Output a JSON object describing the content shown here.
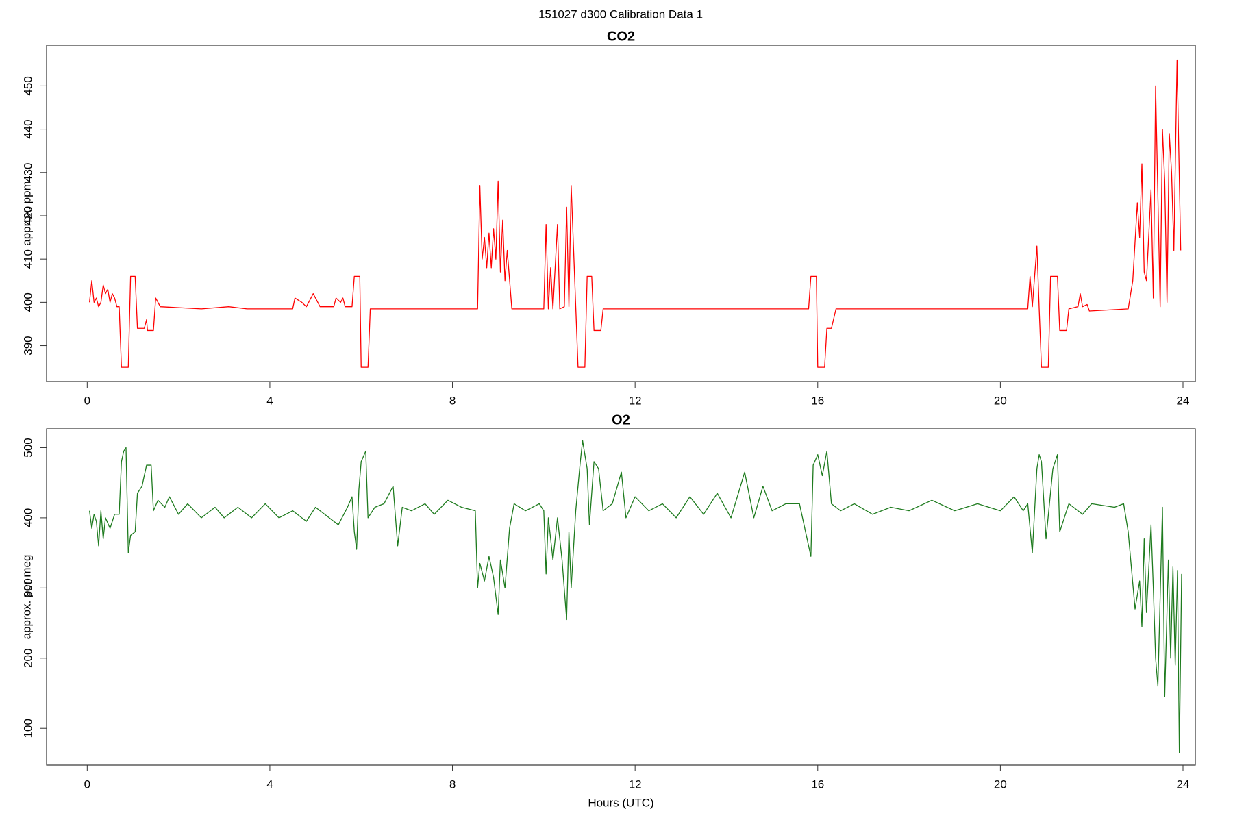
{
  "title": "151027   d300   Calibration Data 1",
  "chart_data": [
    {
      "type": "line",
      "title": "CO2",
      "ylabel": "approx. ppm",
      "xlim": [
        -0.89,
        24.27
      ],
      "xticks": [
        0,
        4,
        8,
        12,
        16,
        20,
        24
      ],
      "ylim": [
        381.7,
        459.4
      ],
      "yticks": [
        390,
        400,
        410,
        420,
        430,
        440,
        450
      ],
      "grid": false,
      "x": [
        0.05,
        0.1,
        0.15,
        0.2,
        0.25,
        0.3,
        0.35,
        0.4,
        0.45,
        0.5,
        0.55,
        0.6,
        0.65,
        0.7,
        0.75,
        0.9,
        0.95,
        1.05,
        1.1,
        1.25,
        1.3,
        1.32,
        1.45,
        1.5,
        1.6,
        2.5,
        3.1,
        3.5,
        4.5,
        4.55,
        4.7,
        4.8,
        4.95,
        5.1,
        5.4,
        5.45,
        5.55,
        5.6,
        5.65,
        5.8,
        5.85,
        5.97,
        6.0,
        6.15,
        6.2,
        8.55,
        8.6,
        8.65,
        8.7,
        8.75,
        8.8,
        8.85,
        8.9,
        8.95,
        9.0,
        9.05,
        9.1,
        9.15,
        9.2,
        9.3,
        10.0,
        10.05,
        10.1,
        10.15,
        10.2,
        10.3,
        10.35,
        10.45,
        10.5,
        10.55,
        10.6,
        10.7,
        10.75,
        10.9,
        10.95,
        11.05,
        11.1,
        11.25,
        11.3,
        15.8,
        15.85,
        15.97,
        16.0,
        16.15,
        16.2,
        16.3,
        16.4,
        20.6,
        20.65,
        20.7,
        20.8,
        20.85,
        20.9,
        21.05,
        21.1,
        21.25,
        21.3,
        21.45,
        21.5,
        21.7,
        21.75,
        21.8,
        21.9,
        21.95,
        22.8,
        22.9,
        23.0,
        23.05,
        23.1,
        23.15,
        23.2,
        23.3,
        23.35,
        23.4,
        23.5,
        23.55,
        23.6,
        23.65,
        23.7,
        23.75,
        23.8,
        23.87,
        23.95
      ],
      "series": [
        {
          "name": "CO2",
          "color": "#ff0000",
          "values": [
            400,
            405,
            400,
            401,
            399,
            400,
            404,
            402,
            403,
            400,
            402,
            401,
            399,
            399,
            385,
            385,
            406,
            406,
            394,
            394,
            396,
            393.5,
            393.5,
            401,
            399,
            398.5,
            399,
            398.5,
            398.5,
            401,
            400,
            399,
            402,
            399,
            399,
            401,
            400,
            401,
            399,
            399,
            406,
            406,
            385,
            385,
            398.5,
            398.5,
            427,
            410,
            415,
            408,
            416,
            408,
            417,
            410,
            428,
            407,
            419,
            405,
            412,
            398.5,
            398.5,
            418,
            398.5,
            408,
            398.5,
            418,
            398.5,
            399,
            422,
            399,
            427,
            399,
            385,
            385,
            406,
            406,
            393.5,
            393.5,
            398.5,
            398.5,
            406,
            406,
            385,
            385,
            394,
            394,
            398.5,
            398.5,
            406,
            399,
            413,
            398.5,
            385,
            385,
            406,
            406,
            393.5,
            393.5,
            398.5,
            399,
            402,
            399,
            399.5,
            398,
            398.5,
            405,
            423,
            415,
            432,
            407,
            405,
            426,
            401,
            450,
            399,
            440,
            428,
            400,
            439,
            430,
            412,
            456,
            412
          ]
        }
      ]
    },
    {
      "type": "line",
      "title": "O2",
      "ylabel": "approx. per meg",
      "xlabel": "Hours (UTC)",
      "xlim": [
        -0.89,
        24.27
      ],
      "xticks": [
        0,
        4,
        8,
        12,
        16,
        20,
        24
      ],
      "ylim": [
        47.5,
        526.8
      ],
      "yticks": [
        100,
        200,
        300,
        400,
        500
      ],
      "grid": false,
      "x": [
        0.05,
        0.1,
        0.15,
        0.2,
        0.25,
        0.3,
        0.35,
        0.4,
        0.5,
        0.6,
        0.7,
        0.75,
        0.8,
        0.85,
        0.9,
        0.95,
        1.05,
        1.1,
        1.2,
        1.3,
        1.4,
        1.45,
        1.55,
        1.7,
        1.8,
        2.0,
        2.2,
        2.5,
        2.8,
        3.0,
        3.3,
        3.6,
        3.9,
        4.2,
        4.5,
        4.8,
        5.0,
        5.3,
        5.5,
        5.7,
        5.8,
        5.85,
        5.9,
        5.95,
        6.0,
        6.1,
        6.15,
        6.3,
        6.5,
        6.7,
        6.8,
        6.9,
        7.1,
        7.4,
        7.6,
        7.9,
        8.2,
        8.5,
        8.55,
        8.6,
        8.7,
        8.8,
        8.9,
        9.0,
        9.05,
        9.15,
        9.25,
        9.35,
        9.6,
        9.9,
        10.0,
        10.05,
        10.1,
        10.2,
        10.3,
        10.4,
        10.5,
        10.55,
        10.6,
        10.7,
        10.8,
        10.85,
        10.95,
        11.0,
        11.1,
        11.2,
        11.3,
        11.5,
        11.7,
        11.8,
        12.0,
        12.3,
        12.6,
        12.9,
        13.2,
        13.5,
        13.8,
        14.1,
        14.4,
        14.6,
        14.8,
        15.0,
        15.3,
        15.6,
        15.8,
        15.85,
        15.9,
        16.0,
        16.1,
        16.2,
        16.3,
        16.5,
        16.8,
        17.2,
        17.6,
        18.0,
        18.5,
        19.0,
        19.5,
        20.0,
        20.3,
        20.5,
        20.6,
        20.7,
        20.8,
        20.85,
        20.9,
        21.0,
        21.15,
        21.25,
        21.3,
        21.5,
        21.8,
        22.0,
        22.5,
        22.7,
        22.8,
        22.95,
        23.05,
        23.1,
        23.15,
        23.2,
        23.3,
        23.35,
        23.4,
        23.45,
        23.55,
        23.6,
        23.68,
        23.73,
        23.78,
        23.83,
        23.88,
        23.92,
        23.97
      ],
      "series": [
        {
          "name": "O2",
          "color": "#1e7b1e",
          "values": [
            410,
            385,
            405,
            395,
            360,
            410,
            370,
            400,
            385,
            405,
            405,
            480,
            495,
            500,
            350,
            375,
            380,
            435,
            445,
            475,
            475,
            410,
            425,
            415,
            430,
            405,
            420,
            400,
            415,
            400,
            415,
            400,
            420,
            400,
            410,
            395,
            415,
            400,
            390,
            415,
            430,
            380,
            355,
            440,
            480,
            495,
            400,
            415,
            420,
            445,
            360,
            415,
            410,
            420,
            405,
            425,
            415,
            410,
            300,
            335,
            310,
            345,
            315,
            262,
            340,
            300,
            385,
            420,
            410,
            420,
            410,
            320,
            400,
            340,
            400,
            340,
            255,
            380,
            300,
            410,
            480,
            510,
            470,
            390,
            480,
            470,
            410,
            420,
            465,
            400,
            430,
            410,
            420,
            400,
            430,
            405,
            435,
            400,
            465,
            400,
            445,
            410,
            420,
            420,
            360,
            345,
            475,
            490,
            460,
            495,
            420,
            410,
            420,
            405,
            415,
            410,
            425,
            410,
            420,
            410,
            430,
            410,
            420,
            350,
            470,
            490,
            480,
            370,
            470,
            490,
            380,
            420,
            405,
            420,
            415,
            420,
            380,
            270,
            310,
            245,
            370,
            265,
            390,
            300,
            200,
            160,
            415,
            145,
            340,
            200,
            330,
            190,
            325,
            65,
            320
          ]
        }
      ]
    }
  ]
}
